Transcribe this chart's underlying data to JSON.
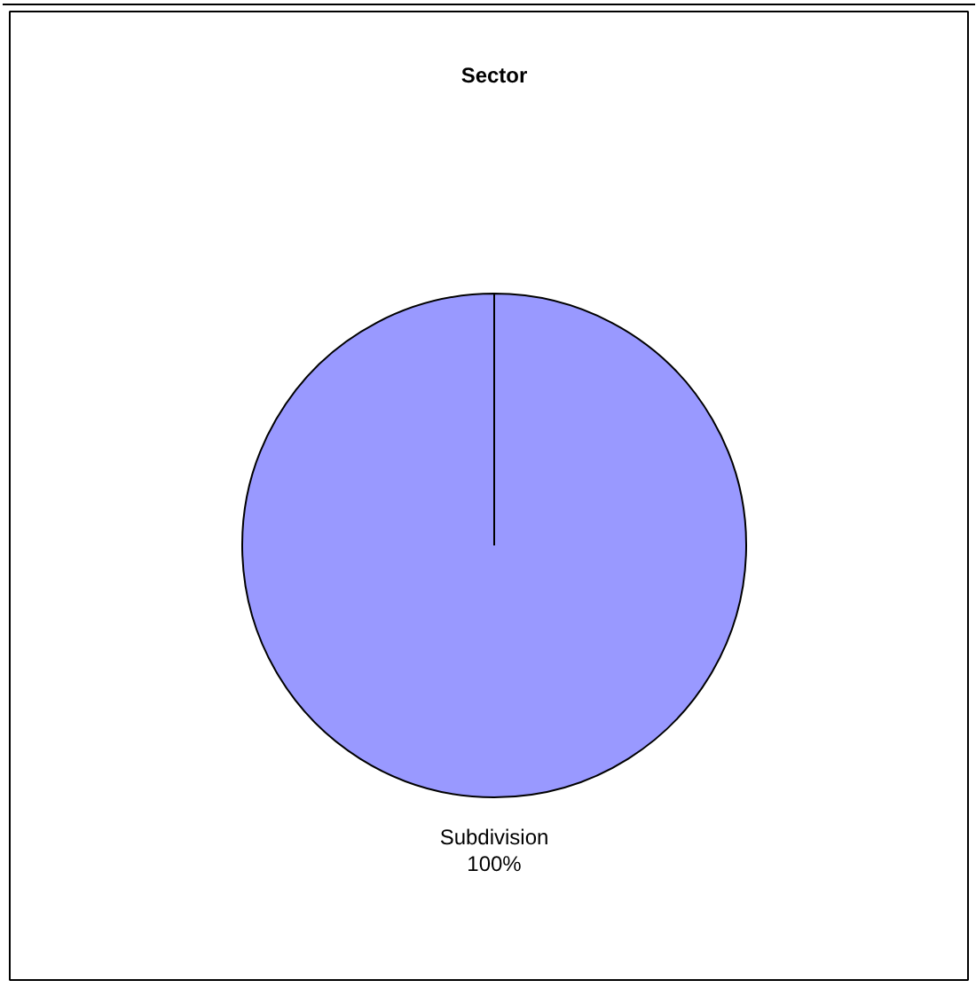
{
  "chart_data": {
    "type": "pie",
    "title": "Sector",
    "categories": [
      "Subdivision"
    ],
    "values": [
      100
    ],
    "colors": [
      "#9999ff"
    ],
    "data_labels": true,
    "value_labels": [
      "100%"
    ]
  }
}
